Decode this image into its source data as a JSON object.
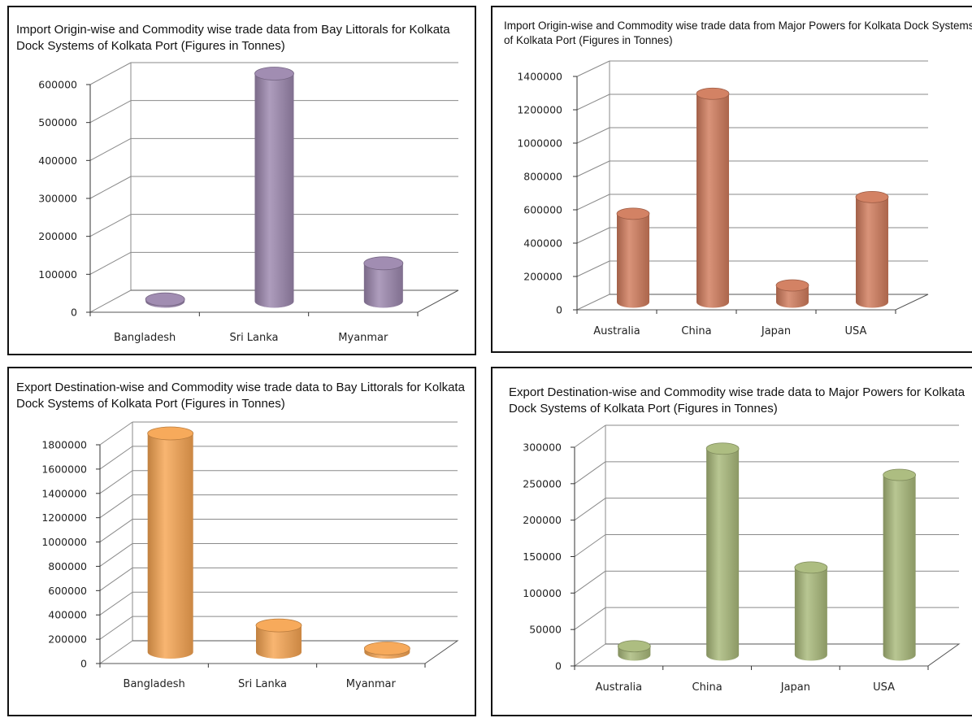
{
  "chart_data": [
    {
      "type": "bar",
      "title": "Import Origin-wise and Commodity wise trade data from Bay Littorals for Kolkata Dock Systems of Kolkata Port (Figures in Tonnes)",
      "categories": [
        "Bangladesh",
        "Sri Lanka",
        "Myanmar"
      ],
      "values": [
        5000,
        600000,
        100000
      ],
      "ylim": [
        0,
        600000
      ],
      "yticks": [
        0,
        100000,
        200000,
        300000,
        400000,
        500000,
        600000
      ],
      "ytick_labels": [
        "0",
        "100000",
        "200000",
        "300000",
        "400000",
        "500000",
        "600000"
      ],
      "grid": true,
      "bar_shape": "3d-cylinder",
      "color": "#9C87AE"
    },
    {
      "type": "bar",
      "title": "Import Origin-wise and Commodity wise trade data from Major Powers for Kolkata Dock Systems of Kolkata Port (Figures in Tonnes)",
      "categories": [
        "Australia",
        "China",
        "Japan",
        "USA"
      ],
      "values": [
        530000,
        1250000,
        100000,
        630000
      ],
      "ylim": [
        0,
        1400000
      ],
      "yticks": [
        0,
        200000,
        400000,
        600000,
        800000,
        1000000,
        1200000,
        1400000
      ],
      "ytick_labels": [
        "0",
        "200000",
        "400000",
        "600000",
        "800000",
        "1000000",
        "1200000",
        "1400000"
      ],
      "grid": true,
      "bar_shape": "3d-cylinder",
      "color": "#D17B5C"
    },
    {
      "type": "bar",
      "title": "Export Destination-wise and Commodity wise trade data to Bay Littorals for Kolkata Dock Systems of Kolkata Port (Figures in Tonnes)",
      "categories": [
        "Bangladesh",
        "Sri Lanka",
        "Myanmar"
      ],
      "values": [
        1800000,
        220000,
        30000
      ],
      "ylim": [
        0,
        1800000
      ],
      "yticks": [
        0,
        200000,
        400000,
        600000,
        800000,
        1000000,
        1200000,
        1400000,
        1600000,
        1800000
      ],
      "ytick_labels": [
        "0",
        "200000",
        "400000",
        "600000",
        "800000",
        "1000000",
        "1200000",
        "1400000",
        "1600000",
        "1800000"
      ],
      "grid": true,
      "bar_shape": "3d-cylinder",
      "color": "#F7A552"
    },
    {
      "type": "bar",
      "title": "Export Destination-wise and Commodity wise trade data to Major Powers for Kolkata Dock Systems of Kolkata Port (Figures in Tonnes)",
      "categories": [
        "Australia",
        "China",
        "Japan",
        "USA"
      ],
      "values": [
        12000,
        283000,
        120000,
        247000
      ],
      "ylim": [
        0,
        300000
      ],
      "yticks": [
        0,
        50000,
        100000,
        150000,
        200000,
        250000,
        300000
      ],
      "ytick_labels": [
        "0",
        "50000",
        "100000",
        "150000",
        "200000",
        "250000",
        "300000"
      ],
      "grid": true,
      "bar_shape": "3d-cylinder",
      "color": "#A9B97A"
    }
  ]
}
